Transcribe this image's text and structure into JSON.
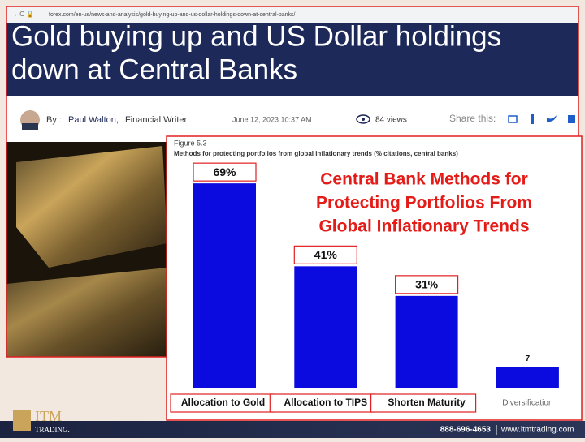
{
  "browser": {
    "url": "forex.com/en-us/news-and-analysis/gold-buying-up-and-us-dollar-holdings-down-at-central-banks/"
  },
  "article": {
    "title_lines": [
      "Gold buying up and US Dollar holdings",
      "down at Central Banks"
    ],
    "by": "By :",
    "author": "Paul Walton,",
    "author_role": "Financial Writer",
    "date": "June 12, 2023 10:37 AM",
    "views": "84 views",
    "share": "Share this:"
  },
  "chart_data": {
    "type": "bar",
    "figure": "Figure 5.3",
    "subtitle": "Methods for protecting portfolios from global inflationary trends (% citations, central banks)",
    "title_lines": [
      "Central Bank Methods for",
      "Protecting Portfolios From",
      "Global Inflationary Trends"
    ],
    "categories": [
      "Allocation to Gold",
      "Allocation to TIPS",
      "Shorten Maturity",
      "Diversification"
    ],
    "values": [
      69,
      41,
      31,
      7
    ],
    "value_labels": [
      "69%",
      "41%",
      "31%",
      "7"
    ],
    "color": "#0b0be0"
  },
  "footer": {
    "logo": "ITM",
    "logo_sub": "TRADING.",
    "phone": "888-696-4653",
    "website": "www.itmtrading.com"
  }
}
